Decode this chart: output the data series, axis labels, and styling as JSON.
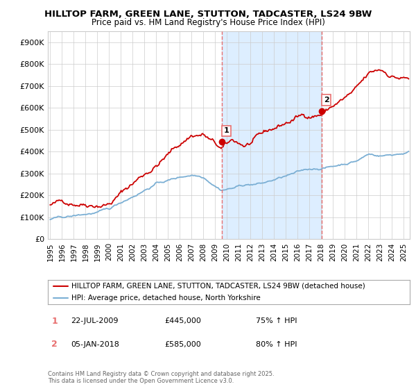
{
  "title_line1": "HILLTOP FARM, GREEN LANE, STUTTON, TADCASTER, LS24 9BW",
  "title_line2": "Price paid vs. HM Land Registry's House Price Index (HPI)",
  "ylabel_ticks": [
    "£0",
    "£100K",
    "£200K",
    "£300K",
    "£400K",
    "£500K",
    "£600K",
    "£700K",
    "£800K",
    "£900K"
  ],
  "ytick_values": [
    0,
    100000,
    200000,
    300000,
    400000,
    500000,
    600000,
    700000,
    800000,
    900000
  ],
  "ylim": [
    0,
    950000
  ],
  "xlim_start": 1994.8,
  "xlim_end": 2025.5,
  "xlabel_years": [
    1995,
    1996,
    1997,
    1998,
    1999,
    2000,
    2001,
    2002,
    2003,
    2004,
    2005,
    2006,
    2007,
    2008,
    2009,
    2010,
    2011,
    2012,
    2013,
    2014,
    2015,
    2016,
    2017,
    2018,
    2019,
    2020,
    2021,
    2022,
    2023,
    2024,
    2025
  ],
  "sale1_x": 2009.55,
  "sale1_y": 445000,
  "sale2_x": 2018.02,
  "sale2_y": 585000,
  "vline1_x": 2009.55,
  "vline2_x": 2018.02,
  "red_line_color": "#cc0000",
  "blue_line_color": "#7bafd4",
  "vline_color": "#e87070",
  "shaded_color": "#ddeeff",
  "background_color": "#ffffff",
  "grid_color": "#cccccc",
  "legend_label_red": "HILLTOP FARM, GREEN LANE, STUTTON, TADCASTER, LS24 9BW (detached house)",
  "legend_label_blue": "HPI: Average price, detached house, North Yorkshire",
  "annotation1_date": "22-JUL-2009",
  "annotation1_price": "£445,000",
  "annotation1_hpi": "75% ↑ HPI",
  "annotation2_date": "05-JAN-2018",
  "annotation2_price": "£585,000",
  "annotation2_hpi": "80% ↑ HPI",
  "footer_text": "Contains HM Land Registry data © Crown copyright and database right 2025.\nThis data is licensed under the Open Government Licence v3.0."
}
